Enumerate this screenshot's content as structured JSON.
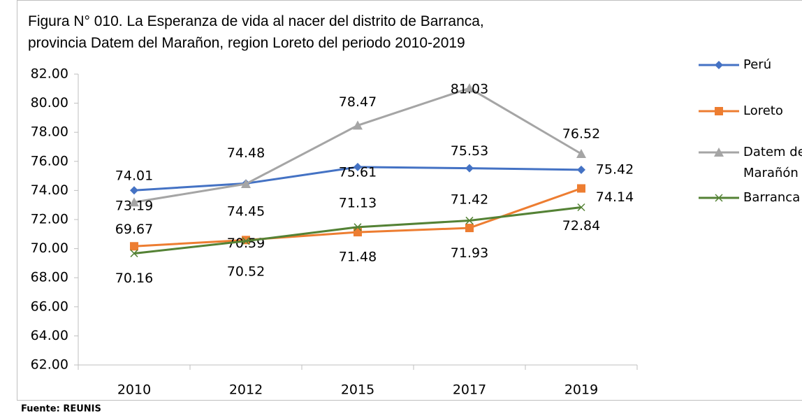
{
  "chart_data": {
    "type": "line",
    "title": "Figura N° 010. La Esperanza de vida al nacer del distrito de Barranca,",
    "subtitle": "provincia Datem del Marañon, region Loreto del periodo 2010-2019",
    "source": "Fuente: REUNIS",
    "categories": [
      "2010",
      "2012",
      "2015",
      "2017",
      "2019"
    ],
    "series": [
      {
        "name": "Perú",
        "color": "#4472c4",
        "marker": "diamond",
        "values": [
          74.01,
          74.48,
          75.61,
          75.53,
          75.42
        ]
      },
      {
        "name": "Loreto",
        "color": "#ed7d31",
        "marker": "square",
        "values": [
          70.16,
          70.59,
          71.13,
          71.42,
          74.14
        ]
      },
      {
        "name": "Datem del Marañón",
        "color": "#a5a5a5",
        "marker": "triangle",
        "values": [
          73.19,
          74.45,
          78.47,
          81.03,
          76.52
        ]
      },
      {
        "name": "Barranca",
        "color": "#548235",
        "marker": "x",
        "values": [
          69.67,
          70.52,
          71.48,
          71.93,
          72.84
        ]
      }
    ],
    "ylim": [
      62,
      82
    ],
    "yticks": [
      {
        "value": 62,
        "label": "62.00"
      },
      {
        "value": 64,
        "label": "64.00"
      },
      {
        "value": 66,
        "label": "66.00"
      },
      {
        "value": 68,
        "label": "68.00"
      },
      {
        "value": 70,
        "label": "70.00"
      },
      {
        "value": 72,
        "label": "72.00"
      },
      {
        "value": 74,
        "label": "74.00"
      },
      {
        "value": 76,
        "label": "76.00"
      },
      {
        "value": 78,
        "label": "78.00"
      },
      {
        "value": 80,
        "label": "80.00"
      },
      {
        "value": 82,
        "label": "82.00"
      }
    ],
    "legend": "right"
  }
}
